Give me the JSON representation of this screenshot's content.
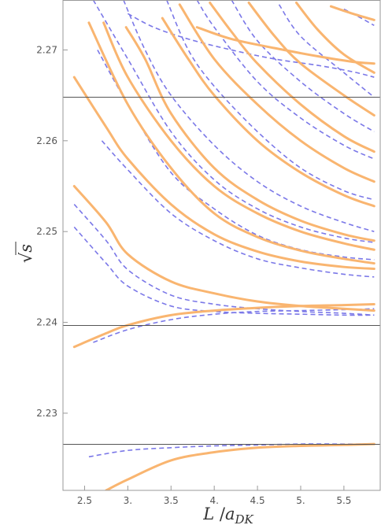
{
  "chart_data": {
    "type": "line",
    "title": "",
    "xlabel": {
      "main": "L",
      "sep": " /",
      "var": "a",
      "sub": "DK"
    },
    "ylabel": {
      "radical": "√",
      "var": "s"
    },
    "xlim": [
      2.25,
      5.92
    ],
    "ylim": [
      2.2215,
      2.2755
    ],
    "xticks": [
      2.5,
      3.0,
      3.5,
      4.0,
      4.5,
      5.0,
      5.5
    ],
    "xtick_labels": [
      "2.5",
      "3.",
      "3.5",
      "4.",
      "4.5",
      "5.",
      "5.5"
    ],
    "yticks": [
      2.23,
      2.24,
      2.25,
      2.26,
      2.27
    ],
    "ytick_labels": [
      "2.23",
      "2.24",
      "2.25",
      "2.26",
      "2.27"
    ],
    "hlines": [
      2.2266,
      2.2397,
      2.2648
    ],
    "colors": {
      "solid": "#f9b570",
      "dashed": "#7b78e8",
      "hline": "#555555",
      "frame": "#999999"
    },
    "legend": "none",
    "grid": false,
    "series": [
      {
        "style": "solid",
        "x": [
          2.75,
          3.0,
          3.5,
          4.0,
          4.5,
          5.0,
          5.5,
          5.85
        ],
        "y": [
          2.2215,
          2.2227,
          2.2248,
          2.2257,
          2.2262,
          2.2264,
          2.2265,
          2.2266
        ]
      },
      {
        "style": "dashed",
        "x": [
          2.55,
          3.0,
          3.5,
          4.0,
          4.5,
          5.0,
          5.5,
          5.85
        ],
        "y": [
          2.2252,
          2.2259,
          2.2262,
          2.2264,
          2.2265,
          2.2266,
          2.2266,
          2.2266
        ]
      },
      {
        "style": "solid",
        "x": [
          2.38,
          2.75,
          3.0,
          3.5,
          4.0,
          4.5,
          5.0,
          5.5,
          5.85
        ],
        "y": [
          2.2373,
          2.2388,
          2.2397,
          2.2408,
          2.2413,
          2.2416,
          2.2418,
          2.2419,
          2.242
        ]
      },
      {
        "style": "dashed",
        "x": [
          2.6,
          3.0,
          3.5,
          4.0,
          4.5,
          5.0,
          5.5,
          5.85
        ],
        "y": [
          2.2378,
          2.2392,
          2.2403,
          2.2409,
          2.2412,
          2.2413,
          2.2414,
          2.2415
        ]
      },
      {
        "style": "solid",
        "x": [
          2.38,
          2.75,
          3.0,
          3.5,
          4.0,
          4.5,
          5.0,
          5.5,
          5.85
        ],
        "y": [
          2.255,
          2.251,
          2.2475,
          2.2445,
          2.2432,
          2.2423,
          2.2418,
          2.2415,
          2.2413
        ]
      },
      {
        "style": "dashed",
        "x": [
          2.38,
          2.75,
          3.0,
          3.5,
          4.0,
          4.5,
          5.0,
          5.5,
          5.85
        ],
        "y": [
          2.253,
          2.249,
          2.2458,
          2.243,
          2.242,
          2.2415,
          2.2412,
          2.241,
          2.2408
        ]
      },
      {
        "style": "dashed",
        "x": [
          2.38,
          2.75,
          3.0,
          3.5,
          4.0,
          4.5,
          5.0,
          5.5,
          5.85
        ],
        "y": [
          2.2505,
          2.2465,
          2.244,
          2.2418,
          2.2412,
          2.241,
          2.2409,
          2.2408,
          2.2408
        ]
      },
      {
        "style": "solid",
        "x": [
          2.38,
          2.75,
          3.0,
          3.5,
          4.0,
          4.5,
          5.0,
          5.5,
          5.85
        ],
        "y": [
          2.267,
          2.2615,
          2.258,
          2.253,
          2.2497,
          2.2478,
          2.2467,
          2.2461,
          2.2459
        ]
      },
      {
        "style": "dashed",
        "x": [
          2.7,
          3.0,
          3.5,
          4.0,
          4.5,
          5.0,
          5.5,
          5.85
        ],
        "y": [
          2.26,
          2.2568,
          2.252,
          2.249,
          2.247,
          2.246,
          2.2453,
          2.245
        ]
      },
      {
        "style": "solid",
        "x": [
          2.55,
          3.0,
          3.5,
          4.0,
          4.5,
          5.0,
          5.5,
          5.85
        ],
        "y": [
          2.273,
          2.264,
          2.257,
          2.252,
          2.2494,
          2.2479,
          2.247,
          2.2465
        ]
      },
      {
        "style": "dashed",
        "x": [
          2.65,
          3.0,
          3.5,
          4.0,
          4.5,
          5.0,
          5.5,
          5.85
        ],
        "y": [
          2.27,
          2.264,
          2.2565,
          2.2525,
          2.2496,
          2.248,
          2.2472,
          2.2469
        ]
      },
      {
        "style": "solid",
        "x": [
          2.72,
          3.0,
          3.5,
          4.0,
          4.5,
          5.0,
          5.5,
          5.85
        ],
        "y": [
          2.273,
          2.267,
          2.26,
          2.255,
          2.252,
          2.25,
          2.2487,
          2.248
        ]
      },
      {
        "style": "dashed",
        "x": [
          2.6,
          3.0,
          3.5,
          4.0,
          4.5,
          5.0,
          5.5,
          5.85
        ],
        "y": [
          2.2755,
          2.269,
          2.261,
          2.2557,
          2.2525,
          2.2505,
          2.2493,
          2.2488
        ]
      },
      {
        "style": "solid",
        "x": [
          2.98,
          3.2,
          3.5,
          4.0,
          4.5,
          5.0,
          5.5,
          5.85
        ],
        "y": [
          2.2725,
          2.269,
          2.263,
          2.257,
          2.2535,
          2.2512,
          2.2497,
          2.249
        ]
      },
      {
        "style": "dashed",
        "x": [
          2.95,
          3.2,
          3.5,
          4.0,
          4.5,
          5.0,
          5.5,
          5.85
        ],
        "y": [
          2.2755,
          2.27,
          2.265,
          2.2595,
          2.2555,
          2.2528,
          2.251,
          2.25
        ]
      },
      {
        "style": "dashed",
        "x": [
          3.45,
          3.7,
          4.0,
          4.5,
          5.0,
          5.5,
          5.85
        ],
        "y": [
          2.2755,
          2.27,
          2.266,
          2.261,
          2.257,
          2.2545,
          2.2535
        ]
      },
      {
        "style": "solid",
        "x": [
          3.4,
          3.7,
          4.0,
          4.5,
          5.0,
          5.5,
          5.85
        ],
        "y": [
          2.2735,
          2.269,
          2.265,
          2.26,
          2.2565,
          2.254,
          2.2528
        ]
      },
      {
        "style": "solid",
        "x": [
          3.6,
          4.0,
          4.5,
          5.0,
          5.5,
          5.85
        ],
        "y": [
          2.275,
          2.269,
          2.264,
          2.26,
          2.257,
          2.2555
        ]
      },
      {
        "style": "dashed",
        "x": [
          3.8,
          4.0,
          4.5,
          5.0,
          5.5,
          5.85
        ],
        "y": [
          2.2755,
          2.2725,
          2.2665,
          2.2625,
          2.2595,
          2.258
        ]
      },
      {
        "style": "solid",
        "x": [
          3.95,
          4.2,
          4.5,
          5.0,
          5.5,
          5.85
        ],
        "y": [
          2.2752,
          2.272,
          2.2685,
          2.264,
          2.2605,
          2.2588
        ]
      },
      {
        "style": "dashed",
        "x": [
          4.2,
          4.5,
          5.0,
          5.5,
          5.85
        ],
        "y": [
          2.2755,
          2.271,
          2.2665,
          2.263,
          2.261
        ]
      },
      {
        "style": "solid",
        "x": [
          4.4,
          4.7,
          5.0,
          5.5,
          5.85
        ],
        "y": [
          2.2752,
          2.2715,
          2.2685,
          2.265,
          2.2628
        ]
      },
      {
        "style": "dashed",
        "x": [
          4.75,
          5.0,
          5.5,
          5.85
        ],
        "y": [
          2.275,
          2.2715,
          2.2675,
          2.2648
        ]
      },
      {
        "style": "solid",
        "x": [
          4.95,
          5.2,
          5.5,
          5.85
        ],
        "y": [
          2.2752,
          2.2722,
          2.2695,
          2.2675
        ]
      },
      {
        "style": "dashed",
        "x": [
          3.0,
          3.3,
          3.7,
          4.2,
          4.7,
          5.2,
          5.6,
          5.85
        ],
        "y": [
          2.274,
          2.2725,
          2.2712,
          2.27,
          2.269,
          2.2683,
          2.2676,
          2.267
        ]
      },
      {
        "style": "solid",
        "x": [
          3.8,
          4.2,
          4.7,
          5.2,
          5.6,
          5.85
        ],
        "y": [
          2.2725,
          2.2712,
          2.2702,
          2.2693,
          2.2687,
          2.2685
        ]
      },
      {
        "style": "solid",
        "x": [
          5.35,
          5.6,
          5.85
        ],
        "y": [
          2.2748,
          2.274,
          2.2733
        ]
      },
      {
        "style": "dashed",
        "x": [
          5.5,
          5.7,
          5.85
        ],
        "y": [
          2.2745,
          2.2735,
          2.2727
        ]
      }
    ]
  }
}
